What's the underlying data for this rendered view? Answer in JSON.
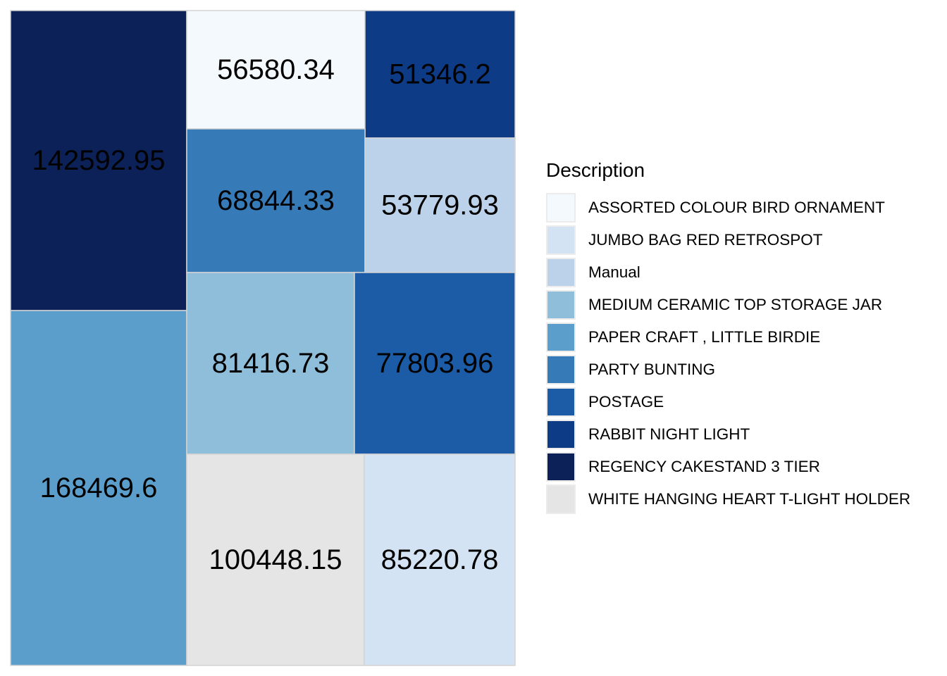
{
  "chart_data": {
    "type": "treemap",
    "legend_title": "Description",
    "legend_position": "right",
    "categories": [
      "ASSORTED COLOUR BIRD ORNAMENT",
      "JUMBO BAG RED RETROSPOT",
      "Manual",
      "MEDIUM CERAMIC TOP STORAGE JAR",
      "PAPER CRAFT , LITTLE BIRDIE",
      "PARTY BUNTING",
      "POSTAGE",
      "RABBIT NIGHT LIGHT",
      "REGENCY CAKESTAND 3 TIER",
      "WHITE HANGING HEART T-LIGHT HOLDER"
    ],
    "colors": [
      "#f4f9fe",
      "#d3e3f3",
      "#bcd2ea",
      "#8fbeda",
      "#5c9ecb",
      "#367ab7",
      "#1c5ba6",
      "#0d3b86",
      "#0b2157",
      "#e5e5e5"
    ],
    "values": [
      56580.34,
      85220.78,
      53779.93,
      81416.73,
      168469.6,
      68844.33,
      77803.96,
      51346.2,
      142592.95,
      100448.15
    ],
    "value_labels": [
      "56580.34",
      "85220.78",
      "53779.93",
      "81416.73",
      "168469.6",
      "68844.33",
      "77803.96",
      "51346.2",
      "142592.95",
      "100448.15"
    ]
  }
}
